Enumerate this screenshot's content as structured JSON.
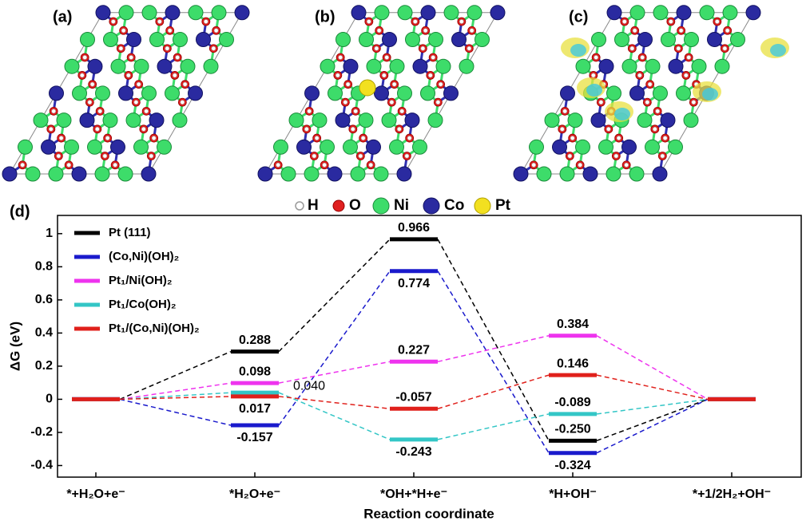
{
  "panels": {
    "labels": [
      "(a)",
      "(b)",
      "(c)"
    ]
  },
  "atom_legend": [
    "H",
    "O",
    "Ni",
    "Co",
    "Pt"
  ],
  "chart_data": {
    "type": "energy",
    "panel_label": "(d)",
    "y_label": "ΔG (eV)",
    "x_label": "Reaction coordinate",
    "categories": [
      "*+H₂O+e⁻",
      "*H₂O+e⁻",
      "*OH+*H+e⁻",
      "*H+OH⁻",
      "*+1/2H₂+OH⁻"
    ],
    "series": [
      {
        "name": "Pt (111)",
        "color": "#000000",
        "values": [
          0,
          0.288,
          0.966,
          -0.25,
          0
        ],
        "value_labels": [
          null,
          "0.288",
          "0.966",
          "-0.250",
          null
        ]
      },
      {
        "name": "(Co,Ni)(OH)₂",
        "color": "#1a1acc",
        "values": [
          0,
          -0.157,
          0.774,
          -0.324,
          0
        ],
        "value_labels": [
          null,
          "-0.157",
          "0.774",
          "-0.324",
          null
        ]
      },
      {
        "name": "Pt₁/Ni(OH)₂",
        "color": "#ee33ee",
        "values": [
          0,
          0.098,
          0.227,
          0.384,
          0
        ],
        "value_labels": [
          null,
          "0.098",
          "0.227",
          "0.384",
          null
        ]
      },
      {
        "name": "Pt₁/Co(OH)₂",
        "color": "#33c6c6",
        "values": [
          0,
          0.04,
          -0.243,
          -0.089,
          0
        ],
        "value_labels": [
          null,
          "0.040",
          "-0.243",
          "-0.089",
          null
        ]
      },
      {
        "name": "Pt₁/(Co,Ni)(OH)₂",
        "color": "#e0201b",
        "values": [
          0,
          0.017,
          -0.057,
          0.146,
          0
        ],
        "value_labels": [
          null,
          "0.017",
          "-0.057",
          "0.146",
          null
        ]
      }
    ],
    "ylim": [
      -0.47,
      1.11
    ],
    "yticks": [
      -0.4,
      -0.2,
      0,
      0.2,
      0.4,
      0.6,
      0.8,
      1
    ]
  }
}
